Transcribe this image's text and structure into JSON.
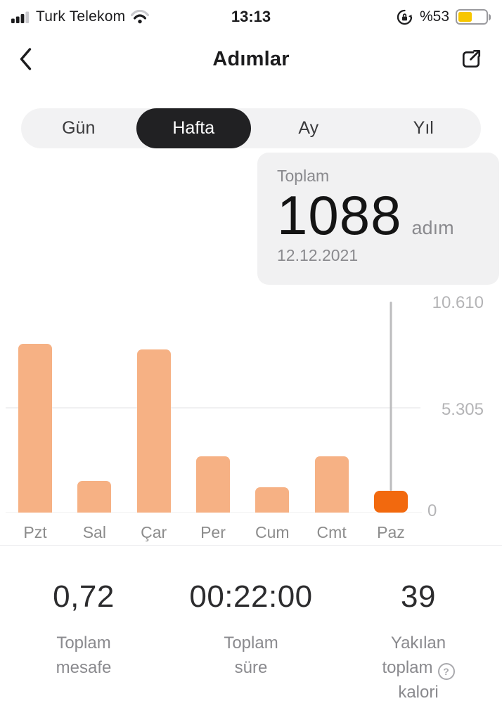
{
  "status_bar": {
    "carrier": "Turk Telekom",
    "time": "13:13",
    "battery_label": "%53",
    "battery_color": "#F7C600",
    "icons": [
      "cellular-signal-icon",
      "wifi-icon",
      "orientation-lock-icon",
      "battery-icon"
    ]
  },
  "header": {
    "title": "Adımlar"
  },
  "tabs": {
    "items": [
      {
        "label": "Gün",
        "selected": false
      },
      {
        "label": "Hafta",
        "selected": true
      },
      {
        "label": "Ay",
        "selected": false
      },
      {
        "label": "Yıl",
        "selected": false
      }
    ]
  },
  "summary_card": {
    "label": "Toplam",
    "value": "1088",
    "unit": "adım",
    "date": "12.12.2021"
  },
  "chart_data": {
    "type": "bar",
    "categories": [
      "Pzt",
      "Sal",
      "Çar",
      "Per",
      "Cum",
      "Cmt",
      "Paz"
    ],
    "values": [
      8490,
      1600,
      8210,
      2820,
      1290,
      2820,
      1088
    ],
    "selected_index": 6,
    "selected_value": 1088,
    "ylim": [
      0,
      10610
    ],
    "yticks": [
      {
        "label": "10.610",
        "value": 10610
      },
      {
        "label": "5.305",
        "value": 5305
      },
      {
        "label": "0",
        "value": 0
      }
    ],
    "gridline_value": 5305,
    "bar_color": "#F6B184",
    "selected_bar_color": "#F2690E",
    "legend": "none",
    "xlabel": "",
    "ylabel": ""
  },
  "stats": [
    {
      "value": "0,72",
      "label_lines": [
        "Toplam",
        "mesafe"
      ]
    },
    {
      "value": "00:22:00",
      "label_lines": [
        "Toplam",
        "süre"
      ]
    },
    {
      "value": "39",
      "label_lines": [
        "Yakılan",
        "toplam",
        "kalori"
      ],
      "help_icon": "?"
    }
  ]
}
